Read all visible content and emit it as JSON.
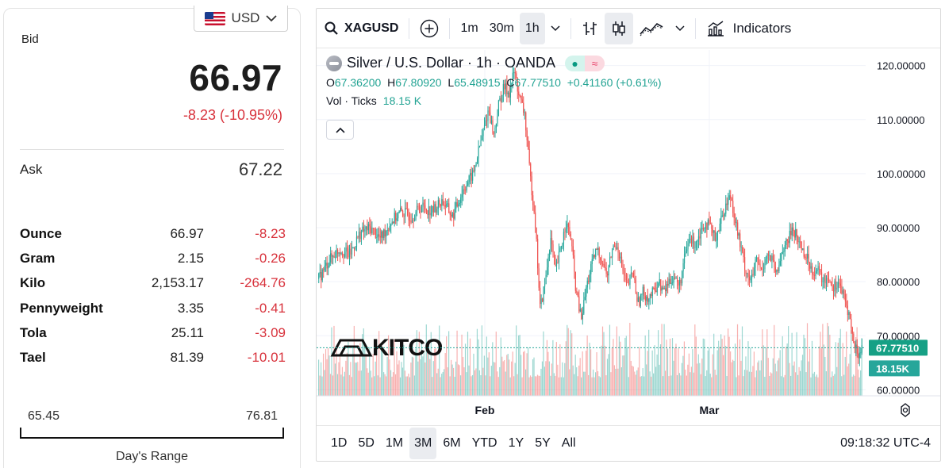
{
  "quote": {
    "currency": "USD",
    "bid_label": "Bid",
    "bid": "66.97",
    "change": "-8.23 (-10.95%)",
    "ask_label": "Ask",
    "ask": "67.22",
    "units": [
      {
        "name": "Ounce",
        "price": "66.97",
        "change": "-8.23"
      },
      {
        "name": "Gram",
        "price": "2.15",
        "change": "-0.26"
      },
      {
        "name": "Kilo",
        "price": "2,153.17",
        "change": "-264.76"
      },
      {
        "name": "Pennyweight",
        "price": "3.35",
        "change": "-0.41"
      },
      {
        "name": "Tola",
        "price": "25.11",
        "change": "-3.09"
      },
      {
        "name": "Tael",
        "price": "81.39",
        "change": "-10.01"
      }
    ],
    "range_low": "65.45",
    "range_high": "76.81",
    "range_label": "Day's Range"
  },
  "toolbar": {
    "symbol": "XAGUSD",
    "intervals": [
      "1m",
      "30m",
      "1h"
    ],
    "active_interval": "1h",
    "indicators_label": "Indicators"
  },
  "legend": {
    "title": "Silver / U.S. Dollar · 1h · OANDA",
    "o_label": "O",
    "o": "67.36200",
    "h_label": "H",
    "h": "67.80920",
    "l_label": "L",
    "l": "65.48915",
    "c_label": "C",
    "c": "67.77510",
    "chg": "+0.41160 (+0.61%)",
    "vol_label": "Vol · Ticks",
    "vol": "18.15 K"
  },
  "chart_data": {
    "type": "candlestick",
    "y_ticks": [
      "120.00000",
      "110.00000",
      "100.00000",
      "90.00000",
      "80.00000",
      "70.00000",
      "60.00000"
    ],
    "y_range": [
      58.0,
      122.0
    ],
    "x_ticks": [
      "Feb",
      "Mar"
    ],
    "price_label": "67.77510",
    "volume_label": "18.15K",
    "last_price": 67.7751,
    "watermark": "KITCO",
    "price_path": [
      [
        0,
        80.5
      ],
      [
        4,
        84
      ],
      [
        8,
        86
      ],
      [
        12,
        85
      ],
      [
        16,
        89
      ],
      [
        20,
        90
      ],
      [
        24,
        88
      ],
      [
        28,
        91
      ],
      [
        32,
        93
      ],
      [
        36,
        92
      ],
      [
        40,
        94
      ],
      [
        44,
        93
      ],
      [
        48,
        95
      ],
      [
        52,
        92
      ],
      [
        56,
        97
      ],
      [
        60,
        100
      ],
      [
        64,
        108
      ],
      [
        66,
        112
      ],
      [
        68,
        107
      ],
      [
        70,
        113
      ],
      [
        72,
        116
      ],
      [
        74,
        115
      ],
      [
        76,
        119
      ],
      [
        78,
        114
      ],
      [
        80,
        111
      ],
      [
        82,
        100
      ],
      [
        84,
        92
      ],
      [
        86,
        75
      ],
      [
        88,
        80
      ],
      [
        90,
        88
      ],
      [
        92,
        82
      ],
      [
        94,
        86
      ],
      [
        96,
        91
      ],
      [
        98,
        88
      ],
      [
        100,
        78
      ],
      [
        102,
        73
      ],
      [
        104,
        79
      ],
      [
        106,
        83
      ],
      [
        108,
        86
      ],
      [
        110,
        84
      ],
      [
        112,
        81
      ],
      [
        114,
        86
      ],
      [
        116,
        87
      ],
      [
        118,
        82
      ],
      [
        120,
        79
      ],
      [
        122,
        82
      ],
      [
        124,
        76
      ],
      [
        126,
        78
      ],
      [
        128,
        77
      ],
      [
        130,
        78
      ],
      [
        132,
        80
      ],
      [
        134,
        78
      ],
      [
        136,
        80
      ],
      [
        138,
        81
      ],
      [
        140,
        79
      ],
      [
        142,
        84
      ],
      [
        144,
        88
      ],
      [
        146,
        87
      ],
      [
        148,
        89
      ],
      [
        150,
        91
      ],
      [
        152,
        90
      ],
      [
        154,
        88
      ],
      [
        156,
        91
      ],
      [
        158,
        94
      ],
      [
        160,
        96
      ],
      [
        162,
        91
      ],
      [
        164,
        86
      ],
      [
        166,
        82
      ],
      [
        168,
        80
      ],
      [
        170,
        84
      ],
      [
        172,
        82
      ],
      [
        174,
        85
      ],
      [
        176,
        84
      ],
      [
        178,
        81
      ],
      [
        180,
        86
      ],
      [
        182,
        87
      ],
      [
        184,
        90
      ],
      [
        186,
        88
      ],
      [
        188,
        86
      ],
      [
        190,
        84
      ],
      [
        192,
        82
      ],
      [
        194,
        82
      ],
      [
        196,
        80
      ],
      [
        198,
        81
      ],
      [
        200,
        79
      ],
      [
        202,
        80
      ],
      [
        204,
        77
      ],
      [
        206,
        74
      ],
      [
        208,
        68
      ],
      [
        210,
        66.5
      ],
      [
        211,
        67.8
      ]
    ]
  },
  "bottom": {
    "ranges": [
      "1D",
      "5D",
      "1M",
      "3M",
      "6M",
      "YTD",
      "1Y",
      "5Y",
      "All"
    ],
    "active_range": "3M",
    "clock": "09:18:32 UTC-4"
  },
  "colors": {
    "up": "#26a69a",
    "down": "#ef5350",
    "accent_teal": "#22a393",
    "negative": "#d8323c"
  }
}
